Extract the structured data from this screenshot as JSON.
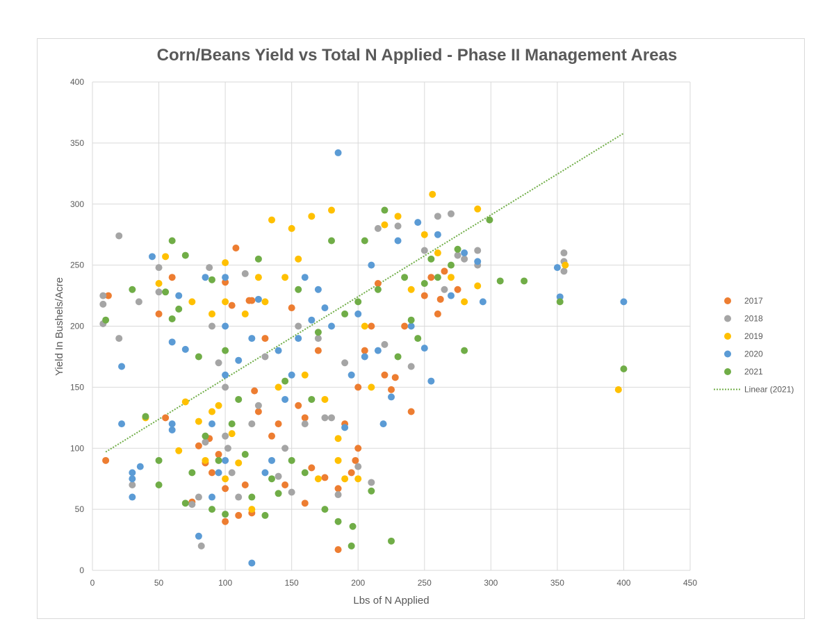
{
  "chart_data": {
    "type": "scatter",
    "title": "Corn/Beans Yield vs Total N Applied - Phase II Management Areas",
    "xlabel": "Lbs of N Applied",
    "ylabel": "Yield In Bushels/Acre",
    "xlim": [
      0,
      450
    ],
    "ylim": [
      0,
      400
    ],
    "x_ticks": [
      "0",
      "50",
      "100",
      "150",
      "200",
      "250",
      "300",
      "350",
      "400",
      "450"
    ],
    "y_ticks": [
      "0",
      "50",
      "100",
      "150",
      "200",
      "250",
      "300",
      "350",
      "400"
    ],
    "grid": true,
    "legend_position": "right",
    "series": [
      {
        "name": "2017",
        "color": "#ED7D31",
        "points": [
          [
            10,
            90
          ],
          [
            12,
            225
          ],
          [
            50,
            210
          ],
          [
            55,
            125
          ],
          [
            60,
            240
          ],
          [
            75,
            56
          ],
          [
            80,
            102
          ],
          [
            85,
            88
          ],
          [
            88,
            108
          ],
          [
            90,
            80
          ],
          [
            95,
            95
          ],
          [
            100,
            40
          ],
          [
            100,
            67
          ],
          [
            100,
            236
          ],
          [
            105,
            217
          ],
          [
            108,
            264
          ],
          [
            110,
            45
          ],
          [
            115,
            70
          ],
          [
            118,
            221
          ],
          [
            120,
            47
          ],
          [
            120,
            221
          ],
          [
            122,
            147
          ],
          [
            125,
            130
          ],
          [
            130,
            190
          ],
          [
            135,
            110
          ],
          [
            140,
            120
          ],
          [
            145,
            70
          ],
          [
            150,
            215
          ],
          [
            155,
            135
          ],
          [
            160,
            55
          ],
          [
            160,
            125
          ],
          [
            165,
            84
          ],
          [
            170,
            180
          ],
          [
            175,
            76
          ],
          [
            185,
            17
          ],
          [
            185,
            67
          ],
          [
            190,
            120
          ],
          [
            195,
            80
          ],
          [
            198,
            90
          ],
          [
            200,
            100
          ],
          [
            200,
            150
          ],
          [
            205,
            180
          ],
          [
            210,
            200
          ],
          [
            215,
            235
          ],
          [
            220,
            160
          ],
          [
            225,
            148
          ],
          [
            228,
            158
          ],
          [
            235,
            200
          ],
          [
            240,
            130
          ],
          [
            250,
            225
          ],
          [
            255,
            240
          ],
          [
            260,
            210
          ],
          [
            262,
            222
          ],
          [
            265,
            245
          ],
          [
            275,
            230
          ]
        ]
      },
      {
        "name": "2018",
        "color": "#A5A5A5",
        "points": [
          [
            8,
            202
          ],
          [
            8,
            218
          ],
          [
            8,
            225
          ],
          [
            20,
            190
          ],
          [
            20,
            274
          ],
          [
            30,
            70
          ],
          [
            35,
            220
          ],
          [
            50,
            228
          ],
          [
            50,
            248
          ],
          [
            75,
            54
          ],
          [
            80,
            60
          ],
          [
            82,
            20
          ],
          [
            85,
            105
          ],
          [
            88,
            248
          ],
          [
            90,
            200
          ],
          [
            95,
            170
          ],
          [
            100,
            110
          ],
          [
            100,
            150
          ],
          [
            102,
            100
          ],
          [
            105,
            80
          ],
          [
            110,
            60
          ],
          [
            115,
            243
          ],
          [
            120,
            120
          ],
          [
            125,
            135
          ],
          [
            130,
            175
          ],
          [
            140,
            77
          ],
          [
            145,
            100
          ],
          [
            150,
            64
          ],
          [
            155,
            200
          ],
          [
            160,
            120
          ],
          [
            170,
            190
          ],
          [
            175,
            125
          ],
          [
            180,
            125
          ],
          [
            185,
            62
          ],
          [
            190,
            170
          ],
          [
            200,
            85
          ],
          [
            210,
            72
          ],
          [
            215,
            280
          ],
          [
            220,
            185
          ],
          [
            230,
            282
          ],
          [
            240,
            167
          ],
          [
            250,
            262
          ],
          [
            260,
            290
          ],
          [
            265,
            230
          ],
          [
            270,
            292
          ],
          [
            275,
            258
          ],
          [
            280,
            255
          ],
          [
            290,
            262
          ],
          [
            290,
            250
          ],
          [
            355,
            260
          ],
          [
            355,
            245
          ],
          [
            355,
            253
          ]
        ]
      },
      {
        "name": "2019",
        "color": "#FFC000",
        "points": [
          [
            40,
            125
          ],
          [
            50,
            235
          ],
          [
            55,
            257
          ],
          [
            65,
            98
          ],
          [
            70,
            138
          ],
          [
            75,
            220
          ],
          [
            80,
            122
          ],
          [
            85,
            90
          ],
          [
            90,
            130
          ],
          [
            90,
            210
          ],
          [
            95,
            135
          ],
          [
            100,
            75
          ],
          [
            100,
            220
          ],
          [
            100,
            252
          ],
          [
            105,
            112
          ],
          [
            110,
            88
          ],
          [
            115,
            210
          ],
          [
            120,
            50
          ],
          [
            125,
            240
          ],
          [
            130,
            220
          ],
          [
            135,
            287
          ],
          [
            140,
            150
          ],
          [
            145,
            240
          ],
          [
            150,
            280
          ],
          [
            155,
            255
          ],
          [
            160,
            160
          ],
          [
            165,
            290
          ],
          [
            170,
            75
          ],
          [
            175,
            140
          ],
          [
            180,
            295
          ],
          [
            185,
            90
          ],
          [
            185,
            108
          ],
          [
            190,
            75
          ],
          [
            200,
            75
          ],
          [
            205,
            200
          ],
          [
            210,
            150
          ],
          [
            220,
            283
          ],
          [
            230,
            290
          ],
          [
            240,
            230
          ],
          [
            250,
            275
          ],
          [
            256,
            308
          ],
          [
            260,
            260
          ],
          [
            270,
            240
          ],
          [
            280,
            220
          ],
          [
            290,
            296
          ],
          [
            290,
            233
          ],
          [
            356,
            250
          ],
          [
            396,
            148
          ]
        ]
      },
      {
        "name": "2020",
        "color": "#5B9BD5",
        "points": [
          [
            22,
            167
          ],
          [
            22,
            120
          ],
          [
            30,
            60
          ],
          [
            30,
            75
          ],
          [
            30,
            80
          ],
          [
            36,
            85
          ],
          [
            45,
            257
          ],
          [
            60,
            187
          ],
          [
            60,
            115
          ],
          [
            60,
            120
          ],
          [
            65,
            225
          ],
          [
            70,
            181
          ],
          [
            80,
            28
          ],
          [
            85,
            240
          ],
          [
            90,
            60
          ],
          [
            90,
            120
          ],
          [
            95,
            80
          ],
          [
            100,
            90
          ],
          [
            100,
            160
          ],
          [
            100,
            200
          ],
          [
            100,
            240
          ],
          [
            110,
            172
          ],
          [
            120,
            6
          ],
          [
            120,
            190
          ],
          [
            125,
            222
          ],
          [
            130,
            80
          ],
          [
            135,
            90
          ],
          [
            140,
            180
          ],
          [
            145,
            140
          ],
          [
            150,
            160
          ],
          [
            155,
            190
          ],
          [
            160,
            240
          ],
          [
            165,
            205
          ],
          [
            170,
            230
          ],
          [
            175,
            215
          ],
          [
            180,
            200
          ],
          [
            185,
            342
          ],
          [
            190,
            117
          ],
          [
            195,
            160
          ],
          [
            200,
            210
          ],
          [
            205,
            175
          ],
          [
            210,
            250
          ],
          [
            215,
            180
          ],
          [
            219,
            120
          ],
          [
            225,
            142
          ],
          [
            230,
            270
          ],
          [
            240,
            200
          ],
          [
            245,
            285
          ],
          [
            250,
            182
          ],
          [
            255,
            155
          ],
          [
            260,
            275
          ],
          [
            270,
            225
          ],
          [
            280,
            260
          ],
          [
            290,
            253
          ],
          [
            294,
            220
          ],
          [
            350,
            248
          ],
          [
            352,
            224
          ],
          [
            400,
            220
          ]
        ]
      },
      {
        "name": "2021",
        "color": "#70AD47",
        "points": [
          [
            10,
            205
          ],
          [
            30,
            230
          ],
          [
            40,
            126
          ],
          [
            50,
            90
          ],
          [
            50,
            70
          ],
          [
            55,
            228
          ],
          [
            60,
            206
          ],
          [
            60,
            270
          ],
          [
            65,
            214
          ],
          [
            70,
            258
          ],
          [
            70,
            55
          ],
          [
            75,
            80
          ],
          [
            80,
            175
          ],
          [
            85,
            110
          ],
          [
            90,
            50
          ],
          [
            90,
            238
          ],
          [
            95,
            90
          ],
          [
            100,
            46
          ],
          [
            100,
            180
          ],
          [
            105,
            120
          ],
          [
            110,
            140
          ],
          [
            115,
            95
          ],
          [
            120,
            60
          ],
          [
            125,
            255
          ],
          [
            130,
            45
          ],
          [
            135,
            75
          ],
          [
            140,
            63
          ],
          [
            145,
            155
          ],
          [
            150,
            90
          ],
          [
            155,
            230
          ],
          [
            160,
            80
          ],
          [
            165,
            140
          ],
          [
            170,
            195
          ],
          [
            175,
            50
          ],
          [
            180,
            270
          ],
          [
            185,
            40
          ],
          [
            190,
            210
          ],
          [
            195,
            20
          ],
          [
            196,
            36
          ],
          [
            200,
            220
          ],
          [
            205,
            270
          ],
          [
            210,
            65
          ],
          [
            215,
            230
          ],
          [
            220,
            295
          ],
          [
            225,
            24
          ],
          [
            230,
            175
          ],
          [
            235,
            240
          ],
          [
            240,
            205
          ],
          [
            245,
            190
          ],
          [
            250,
            235
          ],
          [
            255,
            255
          ],
          [
            260,
            240
          ],
          [
            270,
            250
          ],
          [
            275,
            263
          ],
          [
            280,
            180
          ],
          [
            299,
            287
          ],
          [
            307,
            237
          ],
          [
            325,
            237
          ],
          [
            352,
            220
          ],
          [
            400,
            165
          ]
        ]
      }
    ],
    "trendline": {
      "name": "Linear (2021)",
      "color": "#70AD47",
      "x": [
        10,
        400
      ],
      "y": [
        97,
        358
      ]
    }
  }
}
